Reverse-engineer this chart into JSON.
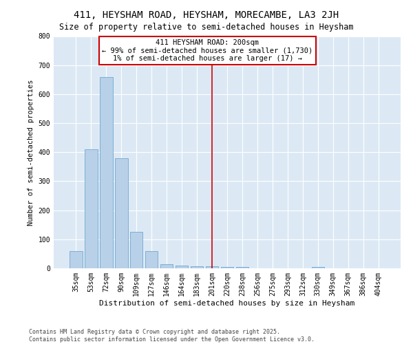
{
  "title": "411, HEYSHAM ROAD, HEYSHAM, MORECAMBE, LA3 2JH",
  "subtitle": "Size of property relative to semi-detached houses in Heysham",
  "xlabel": "Distribution of semi-detached houses by size in Heysham",
  "ylabel": "Number of semi-detached properties",
  "categories": [
    "35sqm",
    "53sqm",
    "72sqm",
    "90sqm",
    "109sqm",
    "127sqm",
    "146sqm",
    "164sqm",
    "183sqm",
    "201sqm",
    "220sqm",
    "238sqm",
    "256sqm",
    "275sqm",
    "293sqm",
    "312sqm",
    "330sqm",
    "349sqm",
    "367sqm",
    "386sqm",
    "404sqm"
  ],
  "values": [
    60,
    410,
    660,
    380,
    125,
    60,
    15,
    10,
    8,
    8,
    5,
    5,
    0,
    0,
    0,
    0,
    5,
    0,
    0,
    0,
    0
  ],
  "bar_color": "#b8d0e8",
  "bar_edge_color": "#6fa8d0",
  "vline_x_index": 9,
  "annotation_text_line1": "411 HEYSHAM ROAD: 200sqm",
  "annotation_text_line2": "← 99% of semi-detached houses are smaller (1,730)",
  "annotation_text_line3": "1% of semi-detached houses are larger (17) →",
  "annotation_box_color": "#ffffff",
  "annotation_box_edge_color": "#cc0000",
  "vline_color": "#cc0000",
  "ylim": [
    0,
    800
  ],
  "yticks": [
    0,
    100,
    200,
    300,
    400,
    500,
    600,
    700,
    800
  ],
  "background_color": "#dce9f5",
  "footer_line1": "Contains HM Land Registry data © Crown copyright and database right 2025.",
  "footer_line2": "Contains public sector information licensed under the Open Government Licence v3.0.",
  "title_fontsize": 10,
  "subtitle_fontsize": 8.5,
  "xlabel_fontsize": 8,
  "ylabel_fontsize": 7.5,
  "tick_fontsize": 7,
  "footer_fontsize": 6,
  "annotation_fontsize": 7.5
}
